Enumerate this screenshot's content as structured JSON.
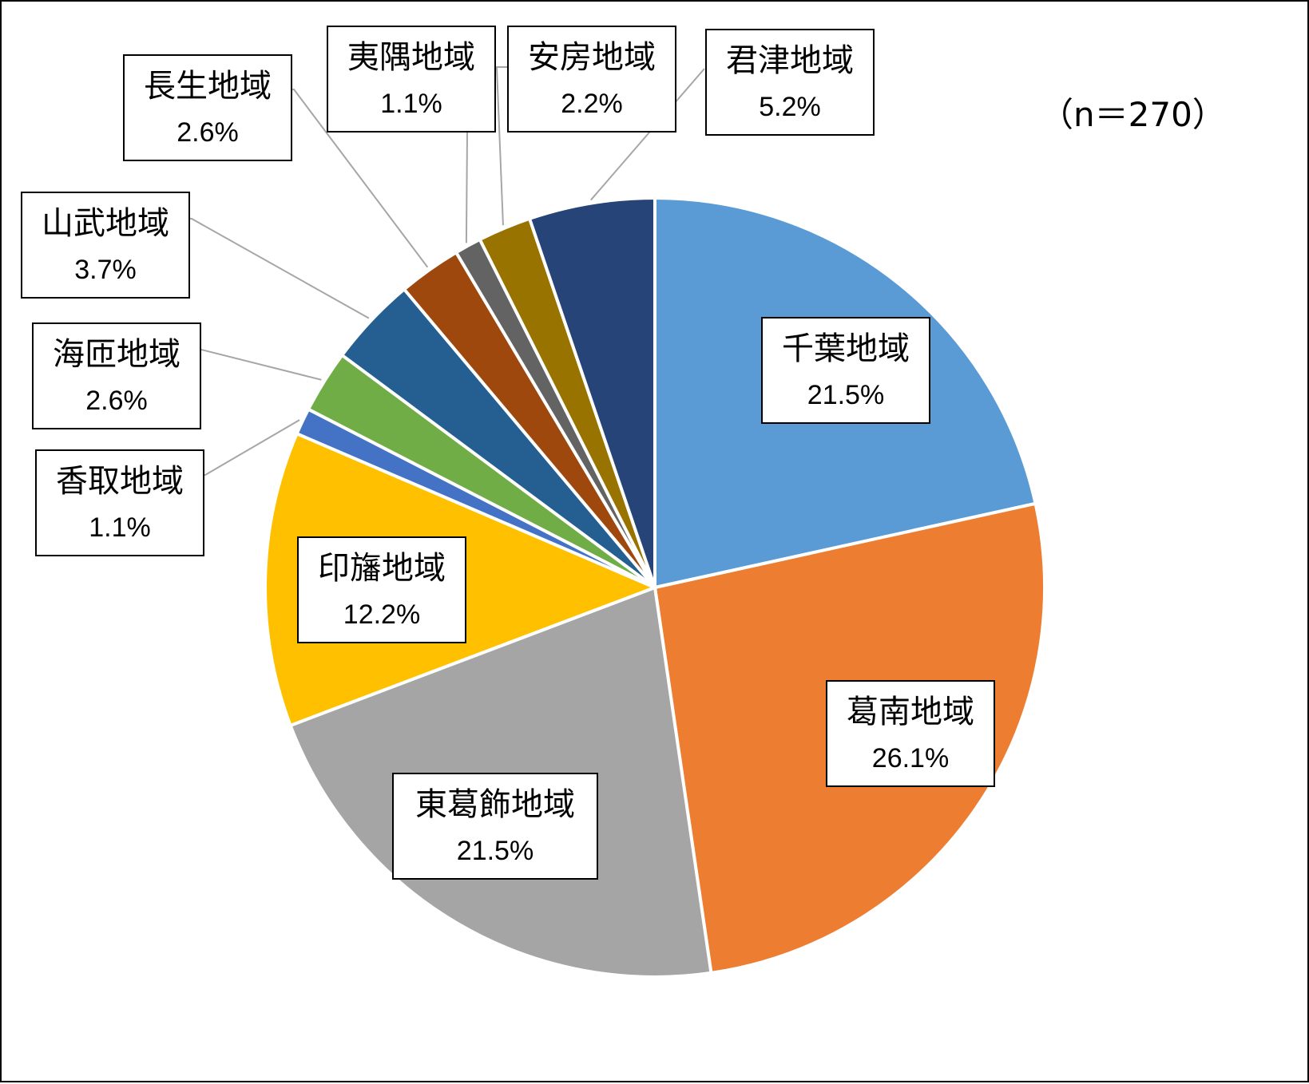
{
  "chart_data": {
    "type": "pie",
    "title": "",
    "note": "（n＝270）",
    "start_angle_deg": 0,
    "direction": "clockwise",
    "slices": [
      {
        "label": "千葉地域",
        "value": 21.5,
        "value_label": "21.5%",
        "color": "#5b9bd5"
      },
      {
        "label": "葛南地域",
        "value": 26.1,
        "value_label": "26.1%",
        "color": "#ed7d31"
      },
      {
        "label": "東葛飾地域",
        "value": 21.5,
        "value_label": "21.5%",
        "color": "#a5a5a5"
      },
      {
        "label": "印旛地域",
        "value": 12.2,
        "value_label": "12.2%",
        "color": "#ffc000"
      },
      {
        "label": "香取地域",
        "value": 1.1,
        "value_label": "1.1%",
        "color": "#4472c4"
      },
      {
        "label": "海匝地域",
        "value": 2.6,
        "value_label": "2.6%",
        "color": "#70ad47"
      },
      {
        "label": "山武地域",
        "value": 3.7,
        "value_label": "3.7%",
        "color": "#255e91"
      },
      {
        "label": "長生地域",
        "value": 2.6,
        "value_label": "2.6%",
        "color": "#9e480e"
      },
      {
        "label": "夷隅地域",
        "value": 1.1,
        "value_label": "1.1%",
        "color": "#636363"
      },
      {
        "label": "安房地域",
        "value": 2.2,
        "value_label": "2.2%",
        "color": "#997300"
      },
      {
        "label": "君津地域",
        "value": 5.2,
        "value_label": "5.2%",
        "color": "#264478"
      }
    ]
  }
}
